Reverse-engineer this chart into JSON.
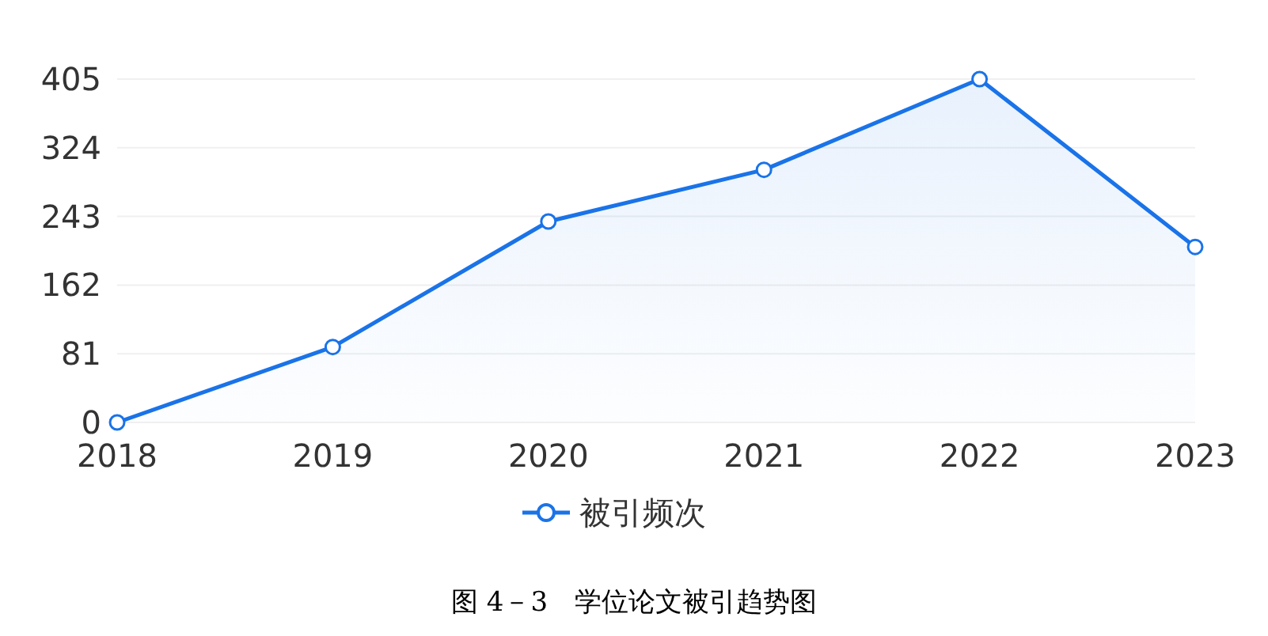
{
  "chart_data": {
    "type": "area",
    "categories": [
      "2018",
      "2019",
      "2020",
      "2021",
      "2022",
      "2023"
    ],
    "series": [
      {
        "name": "被引频次",
        "color": "#1a73e8",
        "values": [
          0,
          89,
          237,
          298,
          405,
          207
        ]
      }
    ],
    "ylim": [
      0,
      405
    ],
    "yticks": [
      0,
      81,
      162,
      243,
      324,
      405
    ],
    "grid": "y",
    "legend": "bottom",
    "marker": "circle",
    "line_style": "solid",
    "annotations": [
      "图 4－3　学位论文被引趋势图"
    ]
  }
}
